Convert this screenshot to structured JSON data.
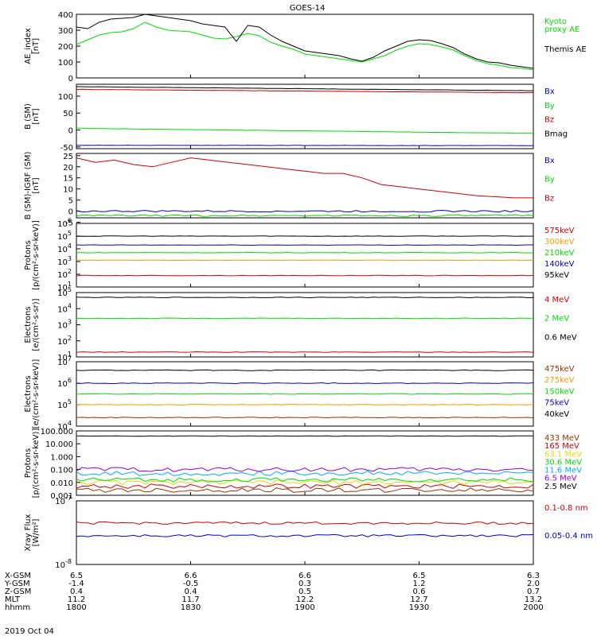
{
  "title": "GOES-14",
  "date_label": "2019 Oct 04",
  "time_axis": {
    "row_labels": [
      "X-GSM",
      "Y-GSM",
      "Z-GSM",
      "MLT",
      "hhmm"
    ],
    "columns": [
      {
        "time": "1800",
        "values": [
          "6.5",
          "-1.4",
          "0.4",
          "11.2",
          "1800"
        ]
      },
      {
        "time": "1830",
        "values": [
          "6.6",
          "-0.5",
          "0.4",
          "11.7",
          "1830"
        ]
      },
      {
        "time": "1900",
        "values": [
          "6.6",
          "0.3",
          "0.5",
          "12.2",
          "1900"
        ]
      },
      {
        "time": "1930",
        "values": [
          "6.5",
          "1.2",
          "0.6",
          "12.7",
          "1930"
        ]
      },
      {
        "time": "2000",
        "values": [
          "6.3",
          "2.0",
          "0.7",
          "13.2",
          "2000"
        ]
      }
    ]
  },
  "colors": {
    "black": "#000000",
    "green": "#00dd00",
    "red": "#cc0000",
    "blue": "#0000cc",
    "orange": "#ff9900",
    "brown": "#993300",
    "yellow": "#dddd00",
    "cyan": "#00aaff",
    "purple": "#9900cc"
  },
  "chart_data": [
    {
      "type": "line",
      "ylabel": "AE_index\n[nT]",
      "yscale": "linear",
      "ylim": [
        0,
        400
      ],
      "yticks": [
        "0",
        "100",
        "200",
        "300",
        "400"
      ],
      "x_hours": [
        0,
        0.05,
        0.1,
        0.15,
        0.2,
        0.25,
        0.3,
        0.35,
        0.4,
        0.45,
        0.5,
        0.55,
        0.6,
        0.65,
        0.7,
        0.75,
        0.8,
        0.85,
        0.9,
        0.95,
        1.0,
        1.05,
        1.1,
        1.15,
        1.2,
        1.25,
        1.3,
        1.35,
        1.4,
        1.45,
        1.5,
        1.55,
        1.6,
        1.65,
        1.7,
        1.75,
        1.8,
        1.85,
        1.9,
        1.95,
        2.0
      ],
      "series": [
        {
          "name": "Kyoto\nproxy AE",
          "color": "green",
          "values": [
            210,
            240,
            270,
            285,
            290,
            310,
            350,
            320,
            300,
            295,
            290,
            270,
            250,
            245,
            260,
            280,
            265,
            225,
            200,
            180,
            150,
            140,
            130,
            120,
            110,
            100,
            120,
            140,
            175,
            200,
            215,
            210,
            195,
            175,
            140,
            110,
            90,
            80,
            65,
            60,
            50
          ]
        },
        {
          "name": "Themis AE",
          "color": "black",
          "values": [
            320,
            310,
            350,
            370,
            375,
            380,
            400,
            390,
            380,
            370,
            360,
            340,
            330,
            320,
            230,
            330,
            320,
            270,
            230,
            200,
            170,
            160,
            150,
            140,
            120,
            105,
            130,
            170,
            200,
            230,
            240,
            235,
            215,
            190,
            150,
            120,
            100,
            95,
            80,
            70,
            60
          ]
        }
      ]
    },
    {
      "type": "line",
      "ylabel": "B (SM)\n[nT]",
      "yscale": "linear",
      "ylim": [
        -55,
        135
      ],
      "yticks": [
        "-50",
        "0",
        "50",
        "100"
      ],
      "series": [
        {
          "name": "Bx",
          "color": "blue",
          "start": -45,
          "end": -46
        },
        {
          "name": "By",
          "color": "green",
          "start": 5,
          "end": -10
        },
        {
          "name": "Bz",
          "color": "red",
          "start": 120,
          "end": 110
        },
        {
          "name": "Bmag",
          "color": "black",
          "start": 128,
          "end": 116
        }
      ]
    },
    {
      "type": "line",
      "ylabel": "B (SM)-IGRF (SM)\n[nT]",
      "yscale": "linear",
      "ylim": [
        -3,
        26
      ],
      "yticks": [
        "-5",
        "0",
        "5",
        "10",
        "15",
        "20",
        "25"
      ],
      "series": [
        {
          "name": "Bx",
          "color": "blue",
          "start": 0,
          "end": 0
        },
        {
          "name": "By",
          "color": "green",
          "start": -2,
          "end": -2
        },
        {
          "name": "Bz",
          "color": "red",
          "values": [
            24,
            22,
            23,
            21,
            20,
            22,
            24,
            23,
            22,
            21,
            20,
            19,
            18,
            17,
            17,
            15,
            12,
            11,
            10,
            9,
            8,
            7,
            6.5,
            6,
            6
          ]
        }
      ]
    },
    {
      "type": "line",
      "ylabel": "Protons\n[p/(cm²-s-sr-keV)]",
      "yscale": "log",
      "ylim_log10": [
        1,
        6
      ],
      "yticks_exp": [
        "1",
        "2",
        "3",
        "4",
        "5",
        "6"
      ],
      "series": [
        {
          "name": "575keV",
          "color": "red",
          "value_log10": 1.9
        },
        {
          "name": "300keV",
          "color": "orange",
          "value_log10": 3.1
        },
        {
          "name": "210keV",
          "color": "green",
          "value_log10": 3.7
        },
        {
          "name": "140keV",
          "color": "blue",
          "value_log10": 4.3
        },
        {
          "name": "95keV",
          "color": "black",
          "value_log10": 5.0
        }
      ]
    },
    {
      "type": "line",
      "ylabel": "Electrons\n[e/(cm²-s-sr)]",
      "yscale": "log",
      "ylim_log10": [
        1,
        5
      ],
      "yticks_exp": [
        "1",
        "2",
        "3",
        "4",
        "5"
      ],
      "series": [
        {
          "name": "4 MeV",
          "color": "red",
          "value_log10": 1.3
        },
        {
          "name": "2 MeV",
          "color": "green",
          "value_log10": 3.4
        },
        {
          "name": "0.6 MeV",
          "color": "black",
          "value_log10": 4.7
        }
      ]
    },
    {
      "type": "line",
      "ylabel": "Electrons\n[e/(cm²-s-sr-keV)]",
      "yscale": "log",
      "ylim_log10": [
        4,
        7
      ],
      "yticks_exp": [
        "4",
        "5",
        "6",
        "7"
      ],
      "series": [
        {
          "name": "475keV",
          "color": "brown",
          "value_log10": 4.4
        },
        {
          "name": "275keV",
          "color": "orange",
          "value_log10": 5.0
        },
        {
          "name": "150keV",
          "color": "green",
          "value_log10": 5.5
        },
        {
          "name": "75keV",
          "color": "blue",
          "value_log10": 6.0
        },
        {
          "name": "40keV",
          "color": "black",
          "value_log10": 6.6
        }
      ]
    },
    {
      "type": "line",
      "ylabel": "Protons\n[p/(cm²-s-sr-keV)]",
      "yscale": "log",
      "ylim_log10": [
        -3,
        2
      ],
      "yticks": [
        "0.001",
        "0.010",
        "0.100",
        "1.000",
        "10.000",
        "100.000"
      ],
      "series": [
        {
          "name": "433 MeV",
          "color": "brown",
          "value_log10": -2.6
        },
        {
          "name": "165 MeV",
          "color": "red",
          "value_log10": -2.3
        },
        {
          "name": "63.1 MeV",
          "color": "yellow",
          "value_log10": -2.0
        },
        {
          "name": "30.6 MeV",
          "color": "green",
          "value_log10": -1.8
        },
        {
          "name": "11.6 MeV",
          "color": "cyan",
          "value_log10": -1.3
        },
        {
          "name": "6.5 MeV",
          "color": "purple",
          "value_log10": -1.0
        },
        {
          "name": "2.5 MeV",
          "color": "black",
          "value_log10": 1.6
        }
      ]
    },
    {
      "type": "line",
      "ylabel": "Xray Flux\n[W/m²]",
      "yscale": "log",
      "ylim_log10": [
        -8,
        -7
      ],
      "yticks_exp": [
        "-8",
        "-7"
      ],
      "series": [
        {
          "name": "0.1-0.8 nm",
          "color": "red",
          "value_log10": -7.35
        },
        {
          "name": "0.05-0.4 nm",
          "color": "blue",
          "value_log10": -7.55
        }
      ]
    }
  ]
}
